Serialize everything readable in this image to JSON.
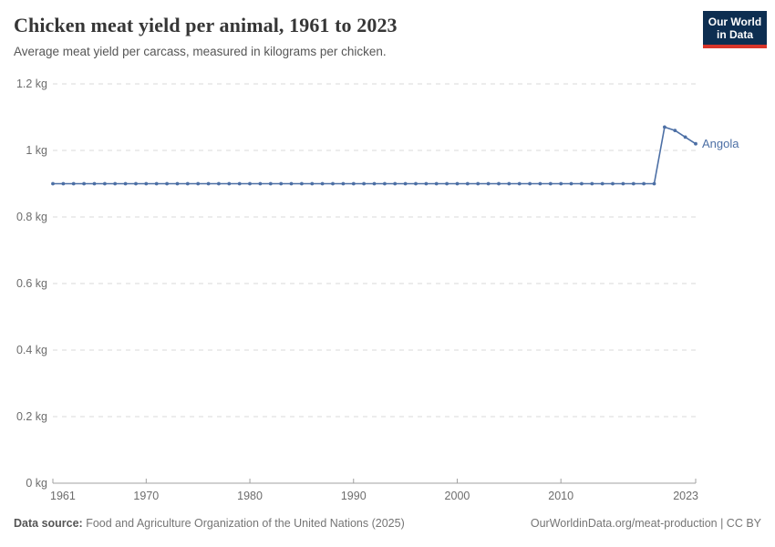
{
  "header": {
    "title": "Chicken meat yield per animal, 1961 to 2023",
    "subtitle": "Average meat yield per carcass, measured in kilograms per chicken."
  },
  "logo": {
    "line1": "Our World",
    "line2": "in Data",
    "bg_color": "#0d2e51",
    "accent_color": "#d8352a"
  },
  "chart_data": {
    "type": "line",
    "title": "Chicken meat yield per animal, 1961 to 2023",
    "xlabel": "",
    "ylabel": "kg",
    "xlim": [
      1961,
      2023
    ],
    "ylim": [
      0,
      1.2
    ],
    "grid": "horizontal-dashed",
    "legend_position": "end-of-line-label",
    "x_ticks": [
      {
        "value": 1961,
        "label": "1961"
      },
      {
        "value": 1970,
        "label": "1970"
      },
      {
        "value": 1980,
        "label": "1980"
      },
      {
        "value": 1990,
        "label": "1990"
      },
      {
        "value": 2000,
        "label": "2000"
      },
      {
        "value": 2010,
        "label": "2010"
      },
      {
        "value": 2023,
        "label": "2023"
      }
    ],
    "y_ticks": [
      {
        "value": 0,
        "label": "0 kg"
      },
      {
        "value": 0.2,
        "label": "0.2 kg"
      },
      {
        "value": 0.4,
        "label": "0.4 kg"
      },
      {
        "value": 0.6,
        "label": "0.6 kg"
      },
      {
        "value": 0.8,
        "label": "0.8 kg"
      },
      {
        "value": 1,
        "label": "1 kg"
      },
      {
        "value": 1.2,
        "label": "1.2 kg"
      }
    ],
    "series": [
      {
        "name": "Angola",
        "color": "#4c6fa5",
        "x": [
          1961,
          1962,
          1963,
          1964,
          1965,
          1966,
          1967,
          1968,
          1969,
          1970,
          1971,
          1972,
          1973,
          1974,
          1975,
          1976,
          1977,
          1978,
          1979,
          1980,
          1981,
          1982,
          1983,
          1984,
          1985,
          1986,
          1987,
          1988,
          1989,
          1990,
          1991,
          1992,
          1993,
          1994,
          1995,
          1996,
          1997,
          1998,
          1999,
          2000,
          2001,
          2002,
          2003,
          2004,
          2005,
          2006,
          2007,
          2008,
          2009,
          2010,
          2011,
          2012,
          2013,
          2014,
          2015,
          2016,
          2017,
          2018,
          2019,
          2020,
          2021,
          2022,
          2023
        ],
        "values": [
          0.9,
          0.9,
          0.9,
          0.9,
          0.9,
          0.9,
          0.9,
          0.9,
          0.9,
          0.9,
          0.9,
          0.9,
          0.9,
          0.9,
          0.9,
          0.9,
          0.9,
          0.9,
          0.9,
          0.9,
          0.9,
          0.9,
          0.9,
          0.9,
          0.9,
          0.9,
          0.9,
          0.9,
          0.9,
          0.9,
          0.9,
          0.9,
          0.9,
          0.9,
          0.9,
          0.9,
          0.9,
          0.9,
          0.9,
          0.9,
          0.9,
          0.9,
          0.9,
          0.9,
          0.9,
          0.9,
          0.9,
          0.9,
          0.9,
          0.9,
          0.9,
          0.9,
          0.9,
          0.9,
          0.9,
          0.9,
          0.9,
          0.9,
          0.9,
          1.07,
          1.06,
          1.04,
          1.02
        ]
      }
    ],
    "colors": {
      "grid": "#dadada",
      "axis": "#a0a0a0",
      "tick_label": "#6d6d6d"
    }
  },
  "footer": {
    "source_label": "Data source:",
    "source_text": "Food and Agriculture Organization of the United Nations (2025)",
    "credit": "OurWorldinData.org/meat-production | CC BY"
  }
}
